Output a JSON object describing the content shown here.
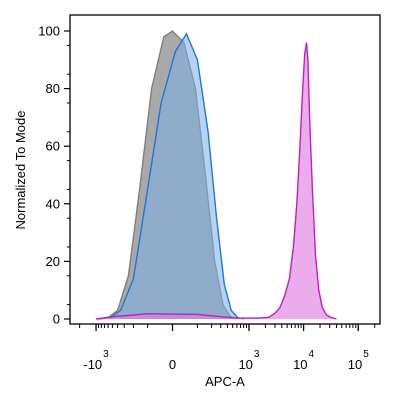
{
  "chart_data": {
    "type": "area",
    "xlabel": "APC-A",
    "ylabel": "Normalized To Mode",
    "x_scale": "biexponential",
    "xlim": [
      -3000,
      250000
    ],
    "ylim": [
      0,
      105
    ],
    "x_ticks": [
      {
        "value": -1000,
        "base": "-10",
        "exp": "3"
      },
      {
        "value": 0,
        "base": "0",
        "exp": ""
      },
      {
        "value": 1000,
        "base": "10",
        "exp": "3"
      },
      {
        "value": 10000,
        "base": "10",
        "exp": "4"
      },
      {
        "value": 100000,
        "base": "10",
        "exp": "5"
      }
    ],
    "y_ticks": [
      0,
      20,
      40,
      60,
      80,
      100
    ],
    "grid": false,
    "legend": "none",
    "series": [
      {
        "color": "#808080",
        "fill": "#8c8c8c",
        "fill_opacity": 0.75,
        "points": [
          [
            -900,
            0
          ],
          [
            -600,
            0.5
          ],
          [
            -400,
            3
          ],
          [
            -250,
            15
          ],
          [
            -150,
            45
          ],
          [
            -80,
            80
          ],
          [
            -30,
            98
          ],
          [
            0,
            100
          ],
          [
            40,
            96
          ],
          [
            90,
            80
          ],
          [
            150,
            50
          ],
          [
            230,
            20
          ],
          [
            330,
            5
          ],
          [
            450,
            1
          ],
          [
            600,
            0
          ]
        ]
      },
      {
        "color": "#1f78d1",
        "fill": "#7ab0e6",
        "fill_opacity": 0.55,
        "points": [
          [
            -900,
            0
          ],
          [
            -550,
            0.5
          ],
          [
            -350,
            3
          ],
          [
            -200,
            14
          ],
          [
            -100,
            45
          ],
          [
            -40,
            75
          ],
          [
            10,
            93
          ],
          [
            50,
            99
          ],
          [
            100,
            90
          ],
          [
            170,
            65
          ],
          [
            250,
            35
          ],
          [
            350,
            12
          ],
          [
            470,
            3
          ],
          [
            620,
            0.5
          ],
          [
            800,
            0
          ]
        ]
      },
      {
        "color": "#c020c0",
        "fill": "#e080e0",
        "fill_opacity": 0.65,
        "points": [
          [
            -1000,
            0
          ],
          [
            -500,
            0.8
          ],
          [
            -100,
            1.8
          ],
          [
            100,
            1.6
          ],
          [
            300,
            0.8
          ],
          [
            600,
            0.3
          ],
          [
            1500,
            0.3
          ],
          [
            2300,
            0.6
          ],
          [
            3000,
            2
          ],
          [
            3700,
            4
          ],
          [
            4500,
            8
          ],
          [
            5500,
            14
          ],
          [
            6500,
            25
          ],
          [
            7500,
            40
          ],
          [
            8500,
            58
          ],
          [
            9500,
            78
          ],
          [
            10500,
            92
          ],
          [
            11300,
            96
          ],
          [
            12000,
            90
          ],
          [
            13000,
            68
          ],
          [
            14500,
            45
          ],
          [
            16500,
            22
          ],
          [
            19000,
            10
          ],
          [
            22000,
            4
          ],
          [
            26000,
            1.5
          ],
          [
            32000,
            0.5
          ],
          [
            40000,
            0
          ]
        ]
      }
    ]
  }
}
